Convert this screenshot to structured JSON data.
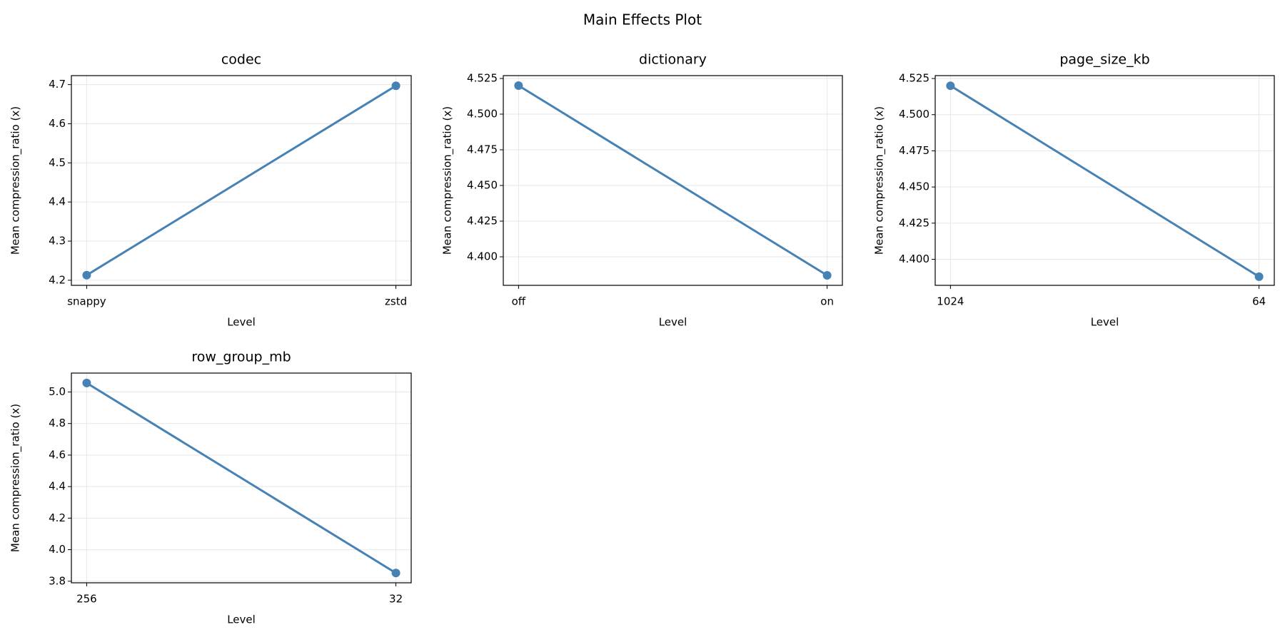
{
  "title": "Main Effects Plot",
  "chart_data": [
    {
      "type": "line",
      "title": "codec",
      "xlabel": "Level",
      "ylabel": "Mean compression_ratio (x)",
      "categories": [
        "snappy",
        "zstd"
      ],
      "values": [
        4.213,
        4.697
      ],
      "color": "#4682b4",
      "ylim": [
        4.187,
        4.723
      ],
      "yticks": [
        4.2,
        4.3,
        4.4,
        4.5,
        4.6,
        4.7
      ],
      "grid": true
    },
    {
      "type": "line",
      "title": "dictionary",
      "xlabel": "Level",
      "ylabel": "Mean compression_ratio (x)",
      "categories": [
        "off",
        "on"
      ],
      "values": [
        4.52,
        4.387
      ],
      "color": "#4682b4",
      "ylim": [
        4.38,
        4.527
      ],
      "yticks": [
        {
          "value": 4.4,
          "label": "4.400"
        },
        4.425,
        {
          "value": 4.45,
          "label": "4.450"
        },
        4.475,
        {
          "value": 4.5,
          "label": "4.500"
        },
        4.525
      ],
      "grid": true
    },
    {
      "type": "line",
      "title": "page_size_kb",
      "xlabel": "Level",
      "ylabel": "Mean compression_ratio (x)",
      "categories": [
        "1024",
        "64"
      ],
      "values": [
        4.52,
        4.388
      ],
      "color": "#4682b4",
      "ylim": [
        4.382,
        4.527
      ],
      "yticks": [
        {
          "value": 4.4,
          "label": "4.400"
        },
        4.425,
        {
          "value": 4.45,
          "label": "4.450"
        },
        4.475,
        {
          "value": 4.5,
          "label": "4.500"
        },
        4.525
      ],
      "grid": true
    },
    {
      "type": "line",
      "title": "row_group_mb",
      "xlabel": "Level",
      "ylabel": "Mean compression_ratio (x)",
      "categories": [
        "256",
        "32"
      ],
      "values": [
        5.057,
        3.852
      ],
      "color": "#4682b4",
      "ylim": [
        3.79,
        5.12
      ],
      "yticks": [
        3.8,
        {
          "value": 4.0,
          "label": "4.0"
        },
        4.2,
        4.4,
        4.6,
        4.8,
        {
          "value": 5.0,
          "label": "5.0"
        }
      ],
      "grid": true
    }
  ]
}
